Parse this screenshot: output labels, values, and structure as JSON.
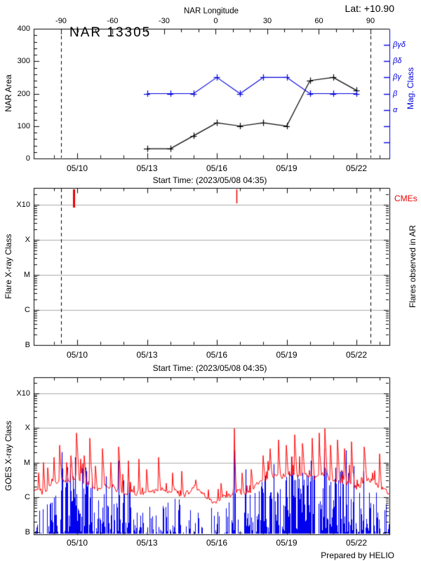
{
  "app": {
    "lat_label": "Lat: +10.90",
    "prepared_by": "Prepared by HELIO"
  },
  "colors": {
    "blue": "#0000dd",
    "red": "#ee0000",
    "grid": "#aaaaaa",
    "axis": "#000000"
  },
  "time_axis": {
    "xlabel": "Start Time: (2023/05/08 04:35)",
    "major_ticks": [
      {
        "label": "05/10",
        "d": 1.809
      },
      {
        "label": "05/13",
        "d": 4.809
      },
      {
        "label": "05/16",
        "d": 7.809
      },
      {
        "label": "05/19",
        "d": 10.809
      },
      {
        "label": "05/22",
        "d": 13.809
      }
    ],
    "minor_day_first_d": 0.809,
    "minor_day_count": 15
  },
  "panels": {
    "area": {
      "title": "NAR 13305",
      "ylabel": "NAR Area",
      "ylabel_right": "Mag. Class",
      "yticks": [
        0,
        100,
        200,
        300,
        400
      ],
      "mag_ticks": [
        {
          "label": "α",
          "v": 150
        },
        {
          "label": "β",
          "v": 200
        },
        {
          "label": "βγ",
          "v": 250
        },
        {
          "label": "βδ",
          "v": 300
        },
        {
          "label": "βγδ",
          "v": 350
        }
      ],
      "mag_minor_ticks_v": [
        50,
        100,
        150,
        200,
        250,
        300,
        350
      ],
      "lon_axis": {
        "label": "NAR Longitude",
        "ticks": [
          -90,
          -60,
          -30,
          0,
          30,
          60,
          90
        ],
        "d_minus90": 1.115,
        "d_plus90": 14.41
      }
    },
    "flare": {
      "ylabel": "Flare X-ray Class",
      "ylabel_right": "Flares observed in AR",
      "cme_label": "CMEs",
      "yticks": [
        {
          "label": "B",
          "log": -7
        },
        {
          "label": "C",
          "log": -6
        },
        {
          "label": "M",
          "log": -5
        },
        {
          "label": "X",
          "log": -4
        },
        {
          "label": "X10",
          "log": -3
        }
      ]
    },
    "goes": {
      "ylabel": "GOES X-ray Class",
      "yticks": [
        {
          "label": "B",
          "log": -7
        },
        {
          "label": "C",
          "log": -6
        },
        {
          "label": "M",
          "log": -5
        },
        {
          "label": "X",
          "log": -4
        },
        {
          "label": "X10",
          "log": -3
        }
      ]
    }
  },
  "chart_data": [
    {
      "type": "line",
      "title": "NAR 13305",
      "latitude": "+10.90",
      "x_dates": [
        "05/13",
        "05/14",
        "05/15",
        "05/16",
        "05/17",
        "05/18",
        "05/19",
        "05/20",
        "05/21",
        "05/22"
      ],
      "x_d": [
        4.809,
        5.809,
        6.809,
        7.809,
        8.809,
        9.809,
        10.809,
        11.809,
        12.809,
        13.809
      ],
      "series": [
        {
          "name": "NAR Area",
          "values": [
            30,
            30,
            70,
            110,
            100,
            110,
            100,
            240,
            250,
            210
          ]
        },
        {
          "name": "Mag. Class",
          "values": [
            "β",
            "β",
            "β",
            "βγ",
            "β",
            "βγ",
            "βγ",
            "β",
            "β",
            "β"
          ]
        }
      ],
      "ylim": [
        0,
        400
      ],
      "mag_scale": {
        "α": 150,
        "β": 200,
        "βγ": 250,
        "βδ": 300,
        "βγδ": 350
      },
      "limb_crossings_d": [
        1.115,
        14.41
      ]
    },
    {
      "type": "event",
      "name": "CMEs and flares observed in AR",
      "cmes": [
        {
          "d": 1.66,
          "strength": 2
        },
        {
          "d": 8.65,
          "strength": 1
        }
      ],
      "flares_in_ar": [],
      "ylog_range": [
        -7,
        -3
      ]
    },
    {
      "type": "line",
      "name": "GOES X-ray flux",
      "ylog_range": [
        -7,
        -3
      ],
      "red_baseline": [
        [
          0,
          -5.75
        ],
        [
          0.3,
          -5.85
        ],
        [
          0.6,
          -5.7
        ],
        [
          0.9,
          -5.55
        ],
        [
          1.2,
          -5.5
        ],
        [
          1.5,
          -5.55
        ],
        [
          1.8,
          -5.5
        ],
        [
          2.1,
          -5.55
        ],
        [
          2.4,
          -5.65
        ],
        [
          2.7,
          -5.75
        ],
        [
          3.0,
          -5.7
        ],
        [
          3.3,
          -5.72
        ],
        [
          3.6,
          -5.8
        ],
        [
          3.9,
          -5.9
        ],
        [
          4.2,
          -5.85
        ],
        [
          4.5,
          -5.88
        ],
        [
          4.8,
          -5.85
        ],
        [
          5.1,
          -5.8
        ],
        [
          5.4,
          -5.75
        ],
        [
          5.7,
          -5.88
        ],
        [
          6.0,
          -5.85
        ],
        [
          6.3,
          -5.95
        ],
        [
          6.6,
          -5.85
        ],
        [
          6.9,
          -5.7
        ],
        [
          7.1,
          -5.8
        ],
        [
          7.35,
          -6.0
        ],
        [
          7.6,
          -6.12
        ],
        [
          7.85,
          -6.08
        ],
        [
          8.1,
          -5.95
        ],
        [
          8.4,
          -5.92
        ],
        [
          8.7,
          -5.85
        ],
        [
          9.0,
          -5.88
        ],
        [
          9.3,
          -5.82
        ],
        [
          9.6,
          -5.6
        ],
        [
          9.9,
          -5.5
        ],
        [
          10.2,
          -5.4
        ],
        [
          10.5,
          -5.38
        ],
        [
          10.8,
          -5.42
        ],
        [
          11.1,
          -5.32
        ],
        [
          11.4,
          -5.35
        ],
        [
          11.7,
          -5.38
        ],
        [
          12.0,
          -5.42
        ],
        [
          12.3,
          -5.36
        ],
        [
          12.6,
          -5.44
        ],
        [
          12.9,
          -5.48
        ],
        [
          13.2,
          -5.52
        ],
        [
          13.5,
          -5.62
        ],
        [
          13.8,
          -5.72
        ],
        [
          14.05,
          -5.6
        ],
        [
          14.2,
          -5.52
        ],
        [
          14.5,
          -5.55
        ],
        [
          14.75,
          -5.72
        ],
        [
          15.0,
          -5.78
        ],
        [
          15.3,
          -5.92
        ]
      ],
      "red_flares": [
        [
          0.15,
          -5.3,
          0.06
        ],
        [
          0.35,
          -5.0,
          0.08
        ],
        [
          0.55,
          -5.15,
          0.06
        ],
        [
          0.8,
          -4.85,
          0.08
        ],
        [
          1.05,
          -4.5,
          0.1
        ],
        [
          1.35,
          -5.0,
          0.06
        ],
        [
          1.55,
          -4.8,
          0.08
        ],
        [
          1.78,
          -4.15,
          0.12
        ],
        [
          1.95,
          -4.9,
          0.06
        ],
        [
          2.12,
          -4.8,
          0.07
        ],
        [
          2.35,
          -4.3,
          0.1
        ],
        [
          2.6,
          -5.1,
          0.06
        ],
        [
          2.9,
          -4.6,
          0.09
        ],
        [
          3.25,
          -5.0,
          0.06
        ],
        [
          3.6,
          -4.55,
          0.1
        ],
        [
          4.0,
          -4.95,
          0.07
        ],
        [
          4.45,
          -4.9,
          0.07
        ],
        [
          4.8,
          -5.2,
          0.06
        ],
        [
          5.3,
          -4.85,
          0.09
        ],
        [
          5.9,
          -5.3,
          0.06
        ],
        [
          6.3,
          -5.25,
          0.07
        ],
        [
          6.9,
          -5.5,
          0.06
        ],
        [
          8.0,
          -5.6,
          0.05
        ],
        [
          8.55,
          -4.02,
          0.09
        ],
        [
          8.9,
          -5.3,
          0.06
        ],
        [
          9.3,
          -5.2,
          0.07
        ],
        [
          9.8,
          -4.8,
          0.08
        ],
        [
          10.1,
          -4.6,
          0.08
        ],
        [
          10.45,
          -4.35,
          0.09
        ],
        [
          10.8,
          -4.5,
          0.08
        ],
        [
          11.15,
          -4.2,
          0.1
        ],
        [
          11.5,
          -4.45,
          0.08
        ],
        [
          11.9,
          -4.3,
          0.09
        ],
        [
          12.2,
          -4.15,
          0.08
        ],
        [
          12.45,
          -4.02,
          0.1
        ],
        [
          12.7,
          -4.5,
          0.07
        ],
        [
          13.0,
          -4.35,
          0.08
        ],
        [
          13.3,
          -4.6,
          0.07
        ],
        [
          13.6,
          -4.4,
          0.08
        ],
        [
          14.15,
          -4.55,
          0.1
        ],
        [
          14.8,
          -4.75,
          0.08
        ]
      ],
      "blue_segments": [
        [
          0,
          0.45,
          28,
          -6.2
        ],
        [
          0.45,
          1.05,
          40,
          -5.7
        ],
        [
          1.05,
          2.45,
          70,
          -5.1
        ],
        [
          2.45,
          3.25,
          34,
          -5.9
        ],
        [
          3.25,
          4.25,
          44,
          -5.5
        ],
        [
          4.25,
          5.25,
          26,
          -6.1
        ],
        [
          5.25,
          6.35,
          22,
          -6.0
        ],
        [
          6.35,
          7.45,
          14,
          -6.3
        ],
        [
          7.45,
          8.45,
          16,
          -6.1
        ],
        [
          8.45,
          9.65,
          32,
          -5.7
        ],
        [
          9.65,
          10.65,
          55,
          -5.35
        ],
        [
          10.65,
          12.25,
          65,
          -5.25
        ],
        [
          12.25,
          13.65,
          70,
          -5.15
        ],
        [
          13.65,
          14.65,
          34,
          -5.8
        ],
        [
          14.65,
          15.3,
          20,
          -6.15
        ]
      ],
      "blue_tall": [
        [
          1.15,
          -4.7
        ],
        [
          1.5,
          -5.05
        ],
        [
          1.72,
          -4.85
        ],
        [
          2.2,
          -5.25
        ],
        [
          3.05,
          -5.4
        ],
        [
          3.6,
          -4.95
        ],
        [
          8.57,
          -4.65
        ],
        [
          9.05,
          -5.2
        ],
        [
          10.25,
          -5.05
        ],
        [
          11.0,
          -4.85
        ],
        [
          11.5,
          -5.3
        ],
        [
          11.85,
          -4.95
        ],
        [
          12.42,
          -4.6
        ],
        [
          12.9,
          -5.15
        ],
        [
          13.35,
          -4.65
        ],
        [
          13.7,
          -5.1
        ],
        [
          14.1,
          -5.25
        ]
      ],
      "noise": {
        "seed": 1337,
        "amp": 0.1,
        "micro": [
          [
            0,
            4.2,
            0.16,
            0.65
          ],
          [
            4.2,
            7.4,
            0.07,
            0.4
          ],
          [
            7.4,
            9.6,
            0.06,
            0.35
          ],
          [
            9.6,
            14.6,
            0.18,
            0.6
          ],
          [
            14.6,
            15.22,
            0.07,
            0.35
          ]
        ]
      }
    }
  ]
}
